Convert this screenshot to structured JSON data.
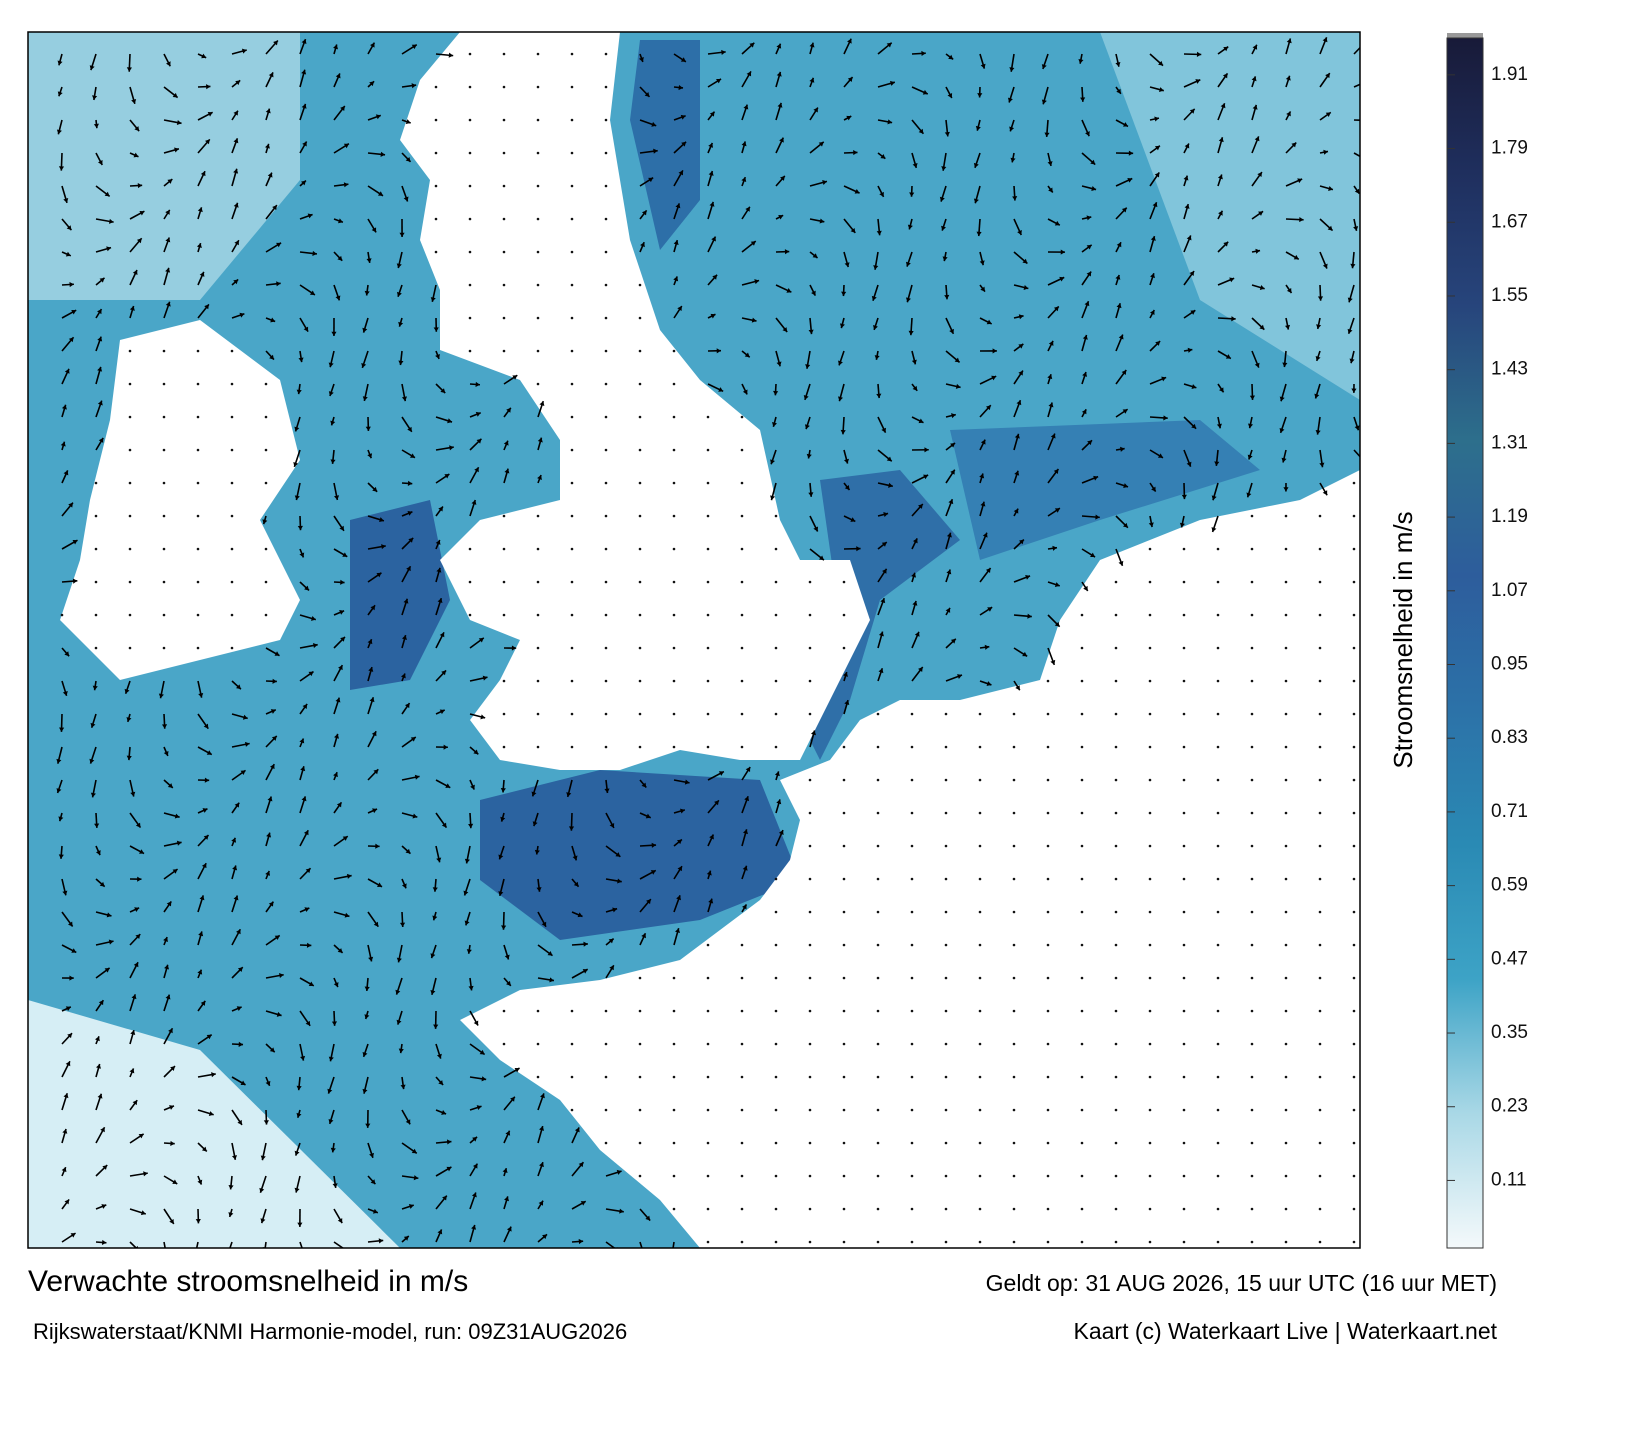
{
  "title": "Verwachte stroomsnelheid in m/s",
  "subtitle": "Rijkswaterstaat/KNMI Harmonie-model, run: 09Z31AUG2026",
  "valid": "Geldt op: 31 AUG 2026, 15 uur UTC (16 uur MET)",
  "credit": "Kaart (c) Waterkaart Live | Waterkaart.net",
  "colorbar": {
    "label": "Stroomsnelheid in m/s",
    "lim": [
      0,
      1.97
    ],
    "ticks": [
      0.11,
      0.23,
      0.35,
      0.47,
      0.59,
      0.71,
      0.83,
      0.95,
      1.07,
      1.19,
      1.31,
      1.43,
      1.55,
      1.67,
      1.79,
      1.91
    ],
    "colors": [
      "#f4f9fb",
      "#a9d8e6",
      "#3da3c6",
      "#2a8ab4",
      "#2c72a8",
      "#2d5d9c",
      "#2d6f8c",
      "#27457c",
      "#1f2f5e",
      "#181a38"
    ]
  }
}
